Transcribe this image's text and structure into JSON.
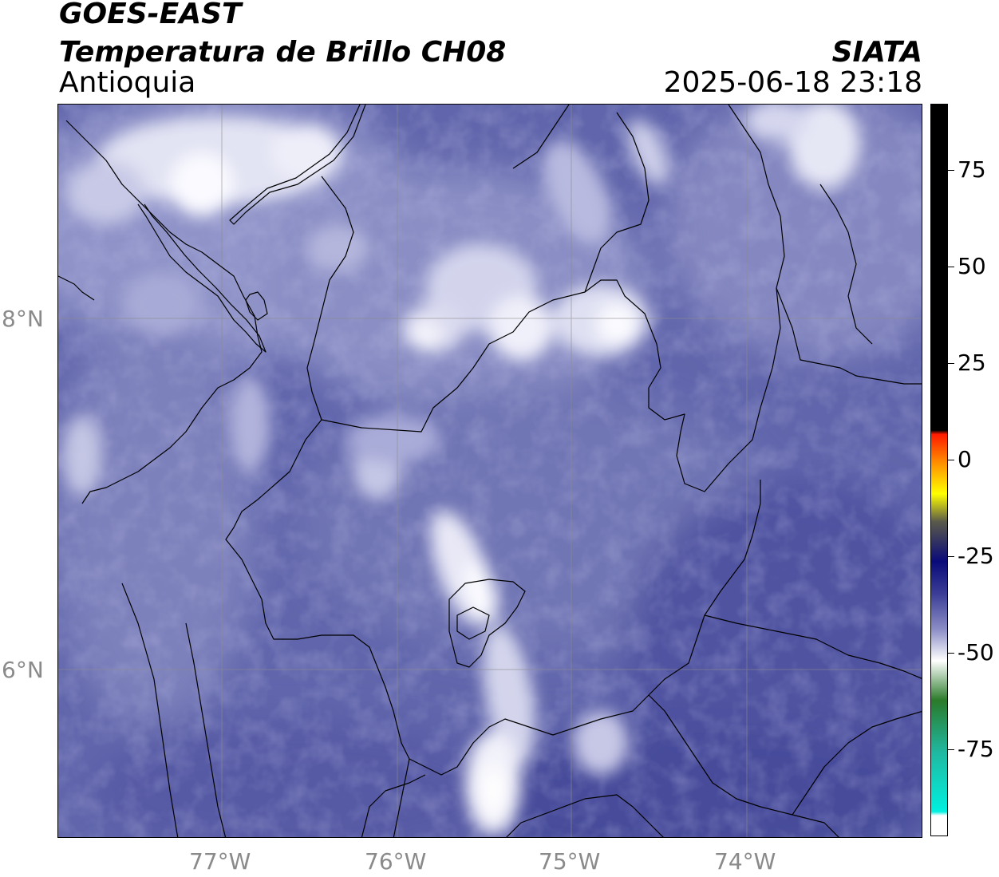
{
  "header": {
    "satellite": "GOES-EAST",
    "product": "Temperatura de Brillo CH08",
    "region": "Antioquia",
    "organization": "SIATA",
    "datetime": "2025-06-18 23:18"
  },
  "map": {
    "latitude_labels": [
      "8°N",
      "6°N"
    ],
    "longitude_labels": [
      "77°W",
      "76°W",
      "75°W",
      "74°W"
    ],
    "gridlines": true,
    "base_color": "#5f63a8",
    "cold_cloud_color": "#f2f2fa"
  },
  "colorbar": {
    "labels": [
      "75",
      "50",
      "25",
      "0",
      "-25",
      "-50",
      "-75"
    ],
    "stops": [
      {
        "value": 90,
        "color": "#000000"
      },
      {
        "value": 8,
        "color": "#000000"
      },
      {
        "value": 7,
        "color": "#ff1a00"
      },
      {
        "value": 0,
        "color": "#ff8c00"
      },
      {
        "value": -8,
        "color": "#ffff00"
      },
      {
        "value": -15,
        "color": "#5a5a4a"
      },
      {
        "value": -25,
        "color": "#0a0a7a"
      },
      {
        "value": -33,
        "color": "#3a3c96"
      },
      {
        "value": -42,
        "color": "#8a8cc6"
      },
      {
        "value": -50,
        "color": "#ffffff"
      },
      {
        "value": -60,
        "color": "#2a7a2a"
      },
      {
        "value": -73,
        "color": "#20b8a0"
      },
      {
        "value": -88,
        "color": "#00f0e0"
      },
      {
        "value": -89,
        "color": "#ffffff"
      },
      {
        "value": -94,
        "color": "#ffffff"
      }
    ]
  }
}
